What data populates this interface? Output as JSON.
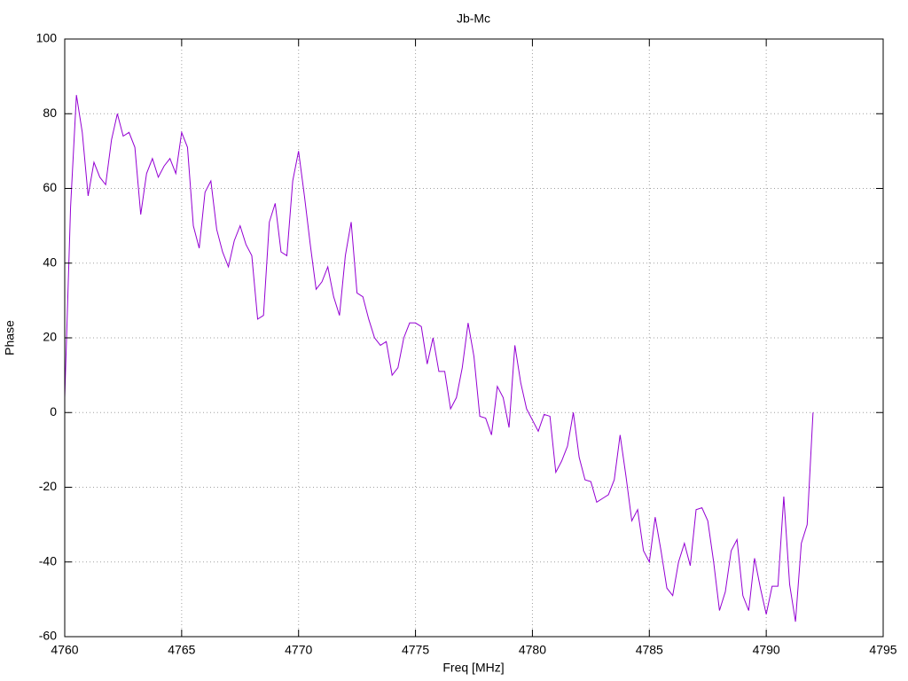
{
  "chart_data": {
    "type": "line",
    "title": "Jb-Mc",
    "x_label": "Freq [MHz]",
    "y_label": "Phase",
    "x": [
      4760,
      4760.25,
      4760.5,
      4760.75,
      4761,
      4761.25,
      4761.5,
      4761.75,
      4762,
      4762.25,
      4762.5,
      4762.75,
      4763,
      4763.25,
      4763.5,
      4763.75,
      4764,
      4764.25,
      4764.5,
      4764.75,
      4765,
      4765.25,
      4765.5,
      4765.75,
      4766,
      4766.25,
      4766.5,
      4766.75,
      4767,
      4767.25,
      4767.5,
      4767.75,
      4768,
      4768.25,
      4768.5,
      4768.75,
      4769,
      4769.25,
      4769.5,
      4769.75,
      4770,
      4770.25,
      4770.5,
      4770.75,
      4771,
      4771.25,
      4771.5,
      4771.75,
      4772,
      4772.25,
      4772.5,
      4772.75,
      4773,
      4773.25,
      4773.5,
      4773.75,
      4774,
      4774.25,
      4774.5,
      4774.75,
      4775,
      4775.25,
      4775.5,
      4775.75,
      4776,
      4776.25,
      4776.5,
      4776.75,
      4777,
      4777.25,
      4777.5,
      4777.75,
      4778,
      4778.25,
      4778.5,
      4778.75,
      4779,
      4779.25,
      4779.5,
      4779.75,
      4780,
      4780.25,
      4780.5,
      4780.75,
      4781,
      4781.25,
      4781.5,
      4781.75,
      4782,
      4782.25,
      4782.5,
      4782.75,
      4783,
      4783.25,
      4783.5,
      4783.75,
      4784,
      4784.25,
      4784.5,
      4784.75,
      4785,
      4785.25,
      4785.5,
      4785.75,
      4786,
      4786.25,
      4786.5,
      4786.75,
      4787,
      4787.25,
      4787.5,
      4787.75,
      4788,
      4788.25,
      4788.5,
      4788.75,
      4789,
      4789.25,
      4789.5,
      4789.75,
      4790,
      4790.25,
      4790.5,
      4790.75,
      4791,
      4791.25,
      4791.5,
      4791.75,
      4792
    ],
    "series": [
      {
        "name": "Jb-Mc",
        "color": "#9400d3",
        "values": [
          4,
          55,
          85,
          75,
          58,
          67,
          63,
          61,
          73,
          80,
          74,
          75,
          71,
          53,
          64,
          68,
          63,
          66,
          68,
          64,
          75,
          71,
          50,
          44,
          59,
          62,
          49,
          43,
          39,
          46,
          50,
          45,
          42,
          25,
          26,
          51,
          56,
          43,
          42,
          62,
          70,
          58,
          45,
          33,
          35,
          39,
          31,
          26,
          42,
          51,
          32,
          31,
          25,
          20,
          18,
          19,
          10,
          12,
          20,
          24,
          24,
          23,
          13,
          20,
          11,
          11,
          1,
          4,
          12,
          24,
          15,
          -1,
          -1.5,
          -6,
          7,
          4,
          -4,
          18,
          8,
          1,
          -2,
          -5,
          -0.5,
          -1,
          -16,
          -13,
          -9,
          0,
          -12,
          -18,
          -18.5,
          -24,
          -23,
          -22,
          -18,
          -6,
          -17,
          -29,
          -26,
          -37,
          -40,
          -28,
          -37,
          -47,
          -49,
          -40,
          -35,
          -41,
          -26,
          -25.5,
          -29,
          -40,
          -53,
          -48,
          -37,
          -34,
          -49,
          -53,
          -39,
          -47,
          -54,
          -46.5,
          -46.5,
          -22.5,
          -46,
          -56,
          -35,
          -30,
          0
        ]
      }
    ],
    "xlim": [
      4760,
      4795
    ],
    "xticks": [
      4760,
      4765,
      4770,
      4775,
      4780,
      4785,
      4790,
      4795
    ],
    "ylim": [
      -60,
      100
    ],
    "yticks": [
      -60,
      -40,
      -20,
      0,
      20,
      40,
      60,
      80,
      100
    ],
    "grid": true
  }
}
